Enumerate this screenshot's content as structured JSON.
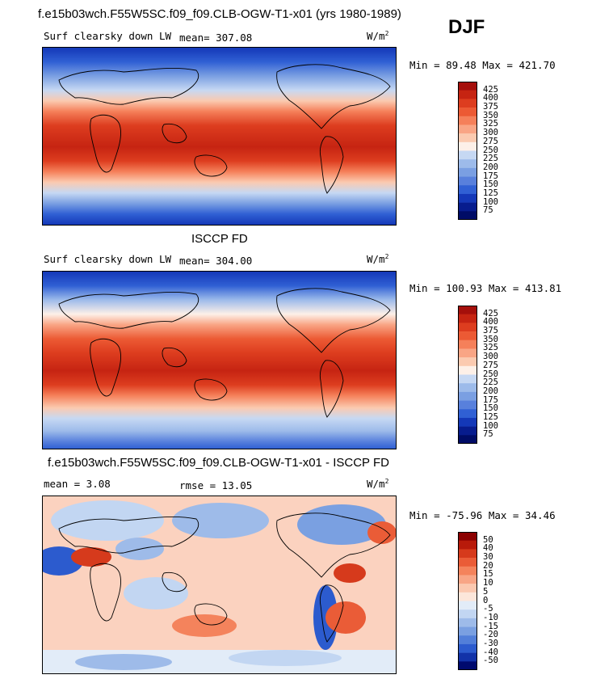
{
  "season": "DJF",
  "units": "W/m",
  "units_exp": "2",
  "panels": [
    {
      "heading": "f.e15b03wch.F55W5SC.f09_f09.CLB-OGW-T1-x01 (yrs 1980-1989)",
      "left_label": "Surf clearsky down LW",
      "stat_label": "mean= 307.08",
      "minmax": "Min = 89.48 Max = 421.70",
      "colorbar_levels": [
        "425",
        "400",
        "375",
        "350",
        "325",
        "300",
        "275",
        "250",
        "225",
        "200",
        "175",
        "150",
        "125",
        "100",
        "75"
      ],
      "colorbar_colors": [
        "#a50f0b",
        "#c62412",
        "#dd3d1f",
        "#ec5a34",
        "#f5805a",
        "#f9a585",
        "#fbcab0",
        "#fdf0e8",
        "#c6d8f3",
        "#9dbbea",
        "#7a9fe2",
        "#5880dc",
        "#3060d4",
        "#1438b8",
        "#071c8e",
        "#000c66"
      ]
    },
    {
      "heading": "ISCCP FD",
      "left_label": "Surf clearsky down LW",
      "stat_label": "mean= 304.00",
      "minmax": "Min = 100.93 Max = 413.81",
      "colorbar_levels": [
        "425",
        "400",
        "375",
        "350",
        "325",
        "300",
        "275",
        "250",
        "225",
        "200",
        "175",
        "150",
        "125",
        "100",
        "75"
      ],
      "colorbar_colors": [
        "#a50f0b",
        "#c62412",
        "#dd3d1f",
        "#ec5a34",
        "#f5805a",
        "#f9a585",
        "#fbcab0",
        "#fdf0e8",
        "#c6d8f3",
        "#9dbbea",
        "#7a9fe2",
        "#5880dc",
        "#3060d4",
        "#1438b8",
        "#071c8e",
        "#000c66"
      ]
    },
    {
      "heading": "f.e15b03wch.F55W5SC.f09_f09.CLB-OGW-T1-x01 - ISCCP FD",
      "left_label": "mean =   3.08",
      "stat_label": "rmse =  13.05",
      "minmax": "Min = -75.96 Max =  34.46",
      "colorbar_levels": [
        "50",
        "40",
        "30",
        "20",
        "15",
        "10",
        "5",
        "0",
        "-5",
        "-10",
        "-15",
        "-20",
        "-30",
        "-40",
        "-50"
      ],
      "colorbar_colors": [
        "#8b0000",
        "#b81a0a",
        "#d63a1c",
        "#ea5c37",
        "#f4835c",
        "#f8a586",
        "#fbc8b0",
        "#fce6da",
        "#e2ecf8",
        "#c2d6f2",
        "#9ebbe9",
        "#7aa0e1",
        "#527fd9",
        "#2c5bce",
        "#1232a8",
        "#000a6e"
      ]
    }
  ]
}
